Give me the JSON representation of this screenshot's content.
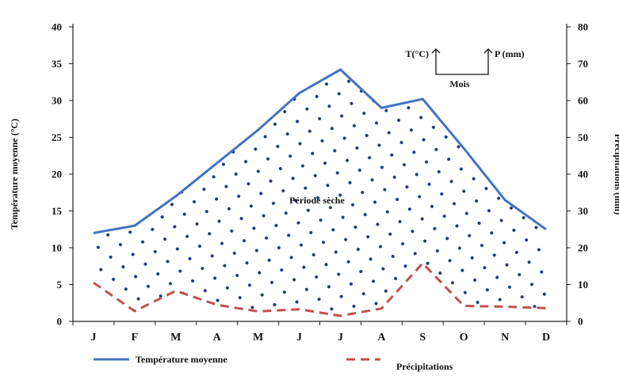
{
  "chart_data": {
    "type": "line",
    "categories": [
      "J",
      "F",
      "M",
      "A",
      "M",
      "J",
      "J",
      "A",
      "S",
      "O",
      "N",
      "D"
    ],
    "series": [
      {
        "name": "Température moyenne",
        "axis": "left",
        "color": "#4472c4",
        "style": "solid",
        "values": [
          12,
          13,
          17,
          21.5,
          26,
          31,
          34.2,
          29,
          30.2,
          23.5,
          16.5,
          12.5
        ]
      },
      {
        "name": "Précipitations",
        "axis": "right",
        "color": "#c0504d",
        "style": "dashed",
        "values": [
          10.5,
          2.8,
          8.3,
          4.5,
          2.7,
          3.3,
          1.5,
          3.5,
          15.8,
          4.2,
          4,
          3.6
        ]
      }
    ],
    "y_left": {
      "label": "Température moyenne (°C)",
      "range": [
        0,
        40
      ],
      "ticks": [
        "0",
        "5",
        "10",
        "15",
        "20",
        "25",
        "30",
        "35",
        "40"
      ]
    },
    "y_right": {
      "label": "Précipitations (mm)",
      "range": [
        0,
        80
      ],
      "ticks": [
        "0",
        "10",
        "20",
        "30",
        "40",
        "50",
        "60",
        "70",
        "80"
      ]
    },
    "shaded_region": {
      "label": "Période sèche",
      "fill": "dotted",
      "dot_color": "#1f3a7a"
    },
    "annotations": {
      "t_label": "T(°C)",
      "p_label": "P (mm)",
      "mois_label": "Mois"
    },
    "legend_placement": "bottom",
    "grid": false
  }
}
